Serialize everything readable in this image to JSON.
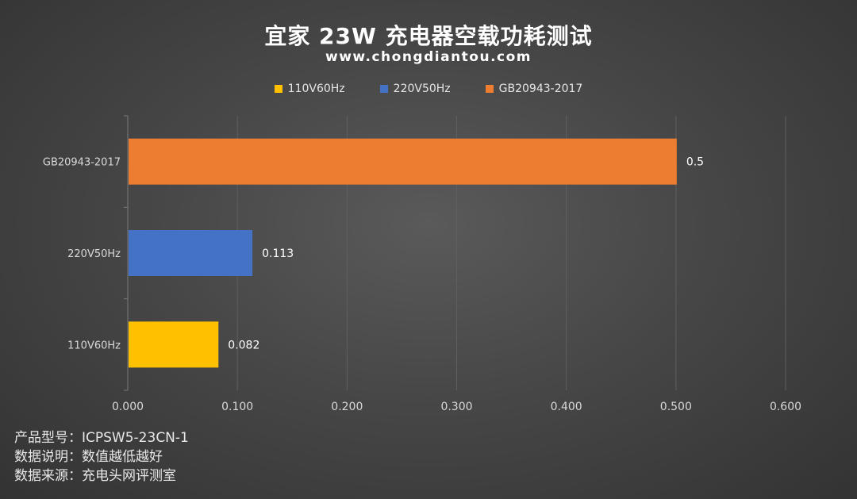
{
  "header": {
    "title": "宜家 23W 充电器空载功耗测试",
    "subtitle": "www.chongdiantou.com"
  },
  "chart_data": {
    "type": "bar",
    "orientation": "horizontal",
    "categories": [
      "110V60Hz",
      "220V50Hz",
      "GB20943-2017"
    ],
    "values": [
      0.082,
      0.113,
      0.5
    ],
    "value_labels": [
      "0.082",
      "0.113",
      "0.5"
    ],
    "colors": [
      "#FFC000",
      "#4472C4",
      "#ED7D31"
    ],
    "legend": [
      {
        "label": "110V60Hz",
        "color": "#FFC000"
      },
      {
        "label": "220V50Hz",
        "color": "#4472C4"
      },
      {
        "label": "GB20943-2017",
        "color": "#ED7D31"
      }
    ],
    "legend_position": "top",
    "xlim": [
      0,
      0.6
    ],
    "x_ticks": [
      "0.000",
      "0.100",
      "0.200",
      "0.300",
      "0.400",
      "0.500",
      "0.600"
    ],
    "grid": true
  },
  "notes": [
    "产品型号：ICPSW5-23CN-1",
    "数据说明：数值越低越好",
    "数据来源：充电头网评测室"
  ]
}
